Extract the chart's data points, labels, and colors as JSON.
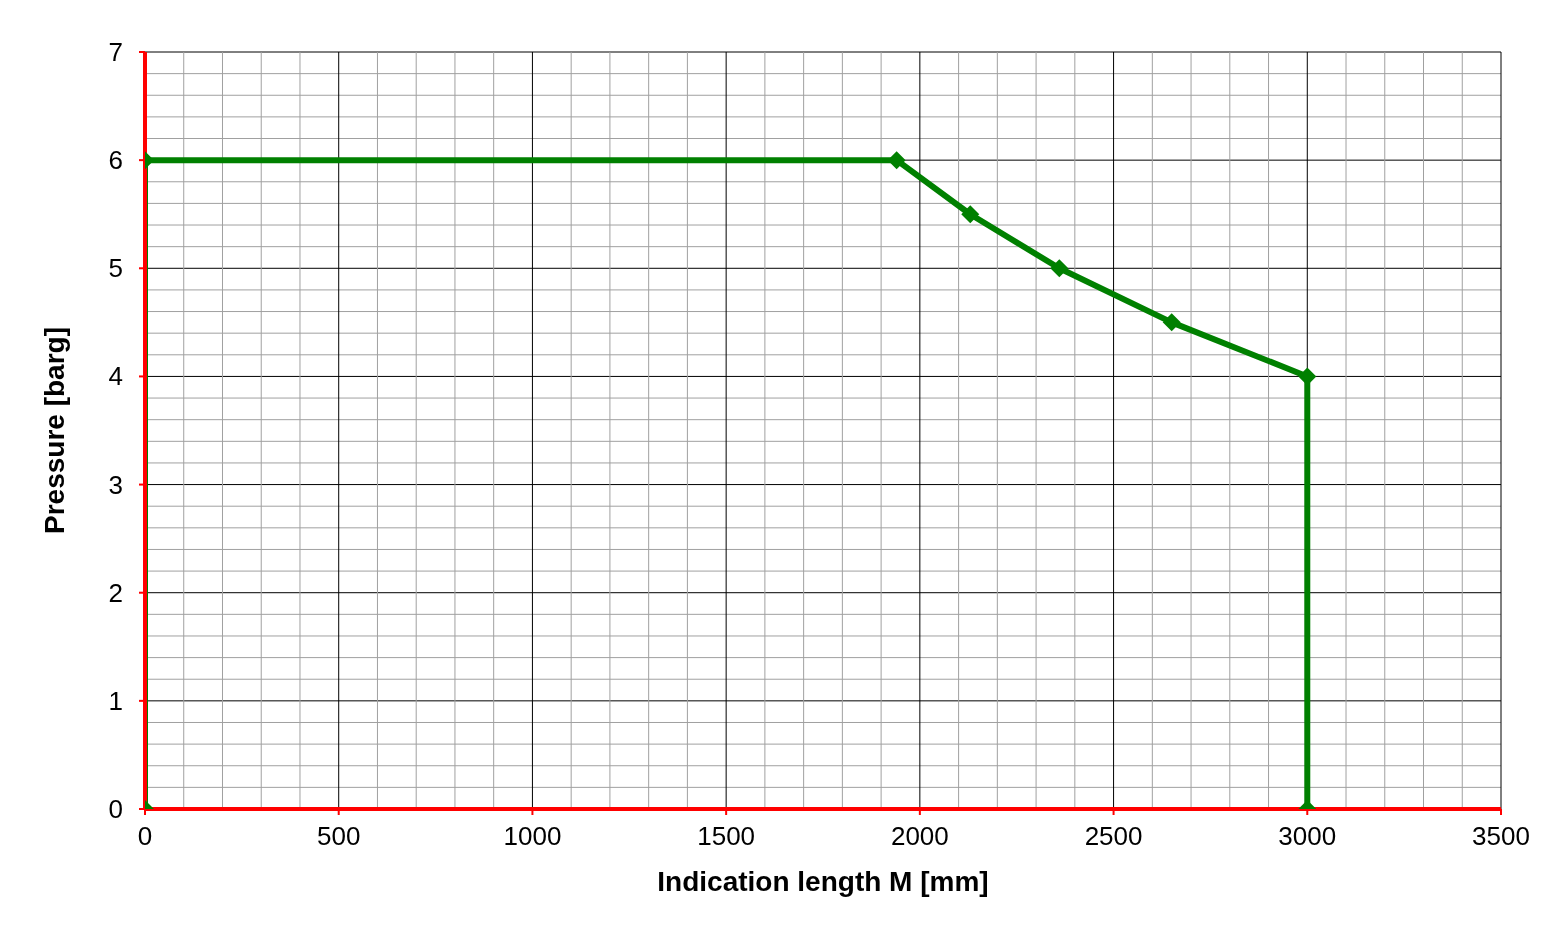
{
  "chart_data": {
    "type": "line",
    "xlabel": "Indication length M [mm]",
    "ylabel": "Pressure [barg]",
    "x": [
      0,
      0,
      1940,
      2130,
      2360,
      2650,
      3000,
      3000
    ],
    "series": [
      {
        "color": "#008000",
        "values": [
          0,
          6,
          6,
          5.5,
          5,
          4.5,
          4,
          0
        ]
      }
    ],
    "xlim": [
      0,
      3500
    ],
    "xticks": [
      0,
      {
        "value": 100,
        "label": null
      },
      {
        "value": 200,
        "label": null
      },
      {
        "value": 300,
        "label": null
      },
      {
        "value": 400,
        "label": null
      },
      500,
      {
        "value": 600,
        "label": null
      },
      {
        "value": 700,
        "label": null
      },
      {
        "value": 800,
        "label": null
      },
      {
        "value": 900,
        "label": null
      },
      1000,
      {
        "value": 1100,
        "label": null
      },
      {
        "value": 1200,
        "label": null
      },
      {
        "value": 1300,
        "label": null
      },
      {
        "value": 1400,
        "label": null
      },
      1500,
      {
        "value": 1600,
        "label": null
      },
      {
        "value": 1700,
        "label": null
      },
      {
        "value": 1800,
        "label": null
      },
      {
        "value": 1900,
        "label": null
      },
      2000,
      {
        "value": 2100,
        "label": null
      },
      {
        "value": 2200,
        "label": null
      },
      {
        "value": 2300,
        "label": null
      },
      {
        "value": 2400,
        "label": null
      },
      2500,
      {
        "value": 2600,
        "label": null
      },
      {
        "value": 2700,
        "label": null
      },
      {
        "value": 2800,
        "label": null
      },
      {
        "value": 2900,
        "label": null
      },
      3000,
      {
        "value": 3100,
        "label": null
      },
      {
        "value": 3200,
        "label": null
      },
      {
        "value": 3300,
        "label": null
      },
      {
        "value": 3400,
        "label": null
      },
      3500
    ],
    "ylim": [
      0,
      7
    ],
    "yticks": [
      0,
      {
        "value": 0.2,
        "label": null
      },
      {
        "value": 0.4,
        "label": null
      },
      {
        "value": 0.6,
        "label": null
      },
      {
        "value": 0.8,
        "label": null
      },
      1,
      {
        "value": 1.2,
        "label": null
      },
      {
        "value": 1.4,
        "label": null
      },
      {
        "value": 1.6,
        "label": null
      },
      {
        "value": 1.8,
        "label": null
      },
      2,
      {
        "value": 2.2,
        "label": null
      },
      {
        "value": 2.4,
        "label": null
      },
      {
        "value": 2.6,
        "label": null
      },
      {
        "value": 2.8,
        "label": null
      },
      3,
      {
        "value": 3.2,
        "label": null
      },
      {
        "value": 3.4,
        "label": null
      },
      {
        "value": 3.6,
        "label": null
      },
      {
        "value": 3.8,
        "label": null
      },
      4,
      {
        "value": 4.2,
        "label": null
      },
      {
        "value": 4.4,
        "label": null
      },
      {
        "value": 4.6,
        "label": null
      },
      {
        "value": 4.8,
        "label": null
      },
      5,
      {
        "value": 5.2,
        "label": null
      },
      {
        "value": 5.4,
        "label": null
      },
      {
        "value": 5.6,
        "label": null
      },
      {
        "value": 5.8,
        "label": null
      },
      6,
      {
        "value": 6.2,
        "label": null
      },
      {
        "value": 6.4,
        "label": null
      },
      {
        "value": 6.6,
        "label": null
      },
      {
        "value": 6.8,
        "label": null
      },
      7
    ],
    "grid": true,
    "legend": false,
    "marker": "diamond",
    "line_style": "solid"
  }
}
